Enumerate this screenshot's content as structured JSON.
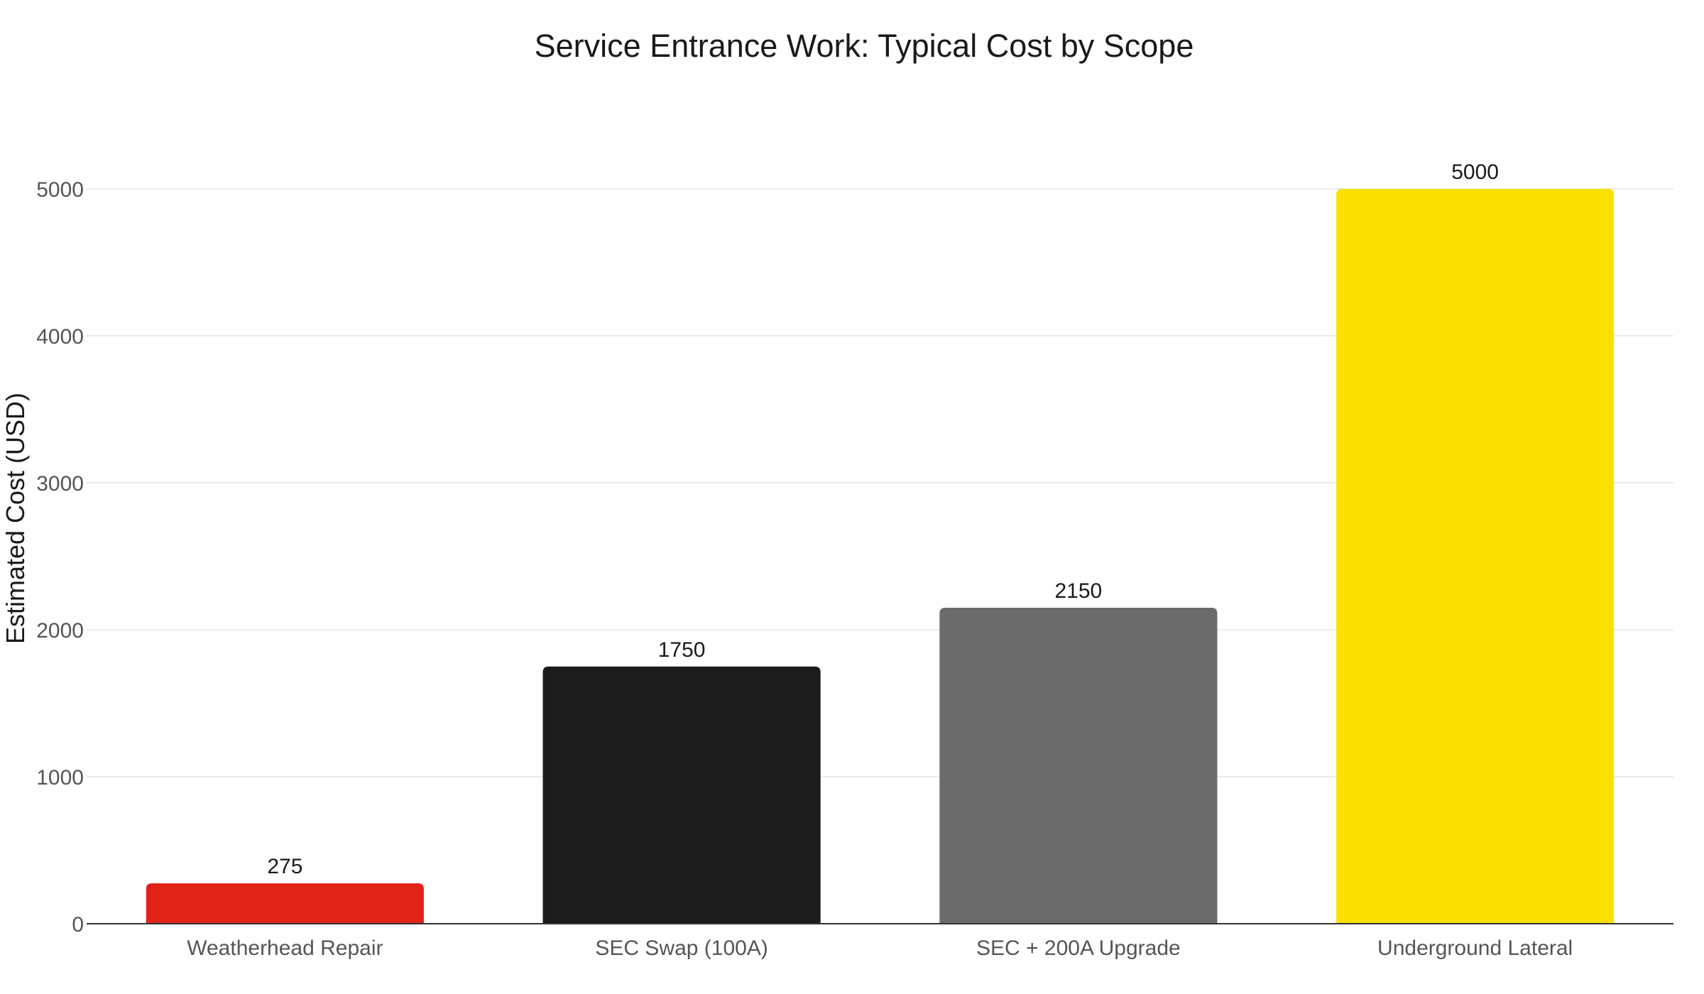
{
  "chart_data": {
    "type": "bar",
    "title": "Service Entrance Work: Typical Cost by Scope",
    "xlabel": "",
    "ylabel": "Estimated Cost (USD)",
    "categories": [
      "Weatherhead Repair",
      "SEC Swap (100A)",
      "SEC + 200A Upgrade",
      "Underground Lateral"
    ],
    "values": [
      275,
      1750,
      2150,
      5000
    ],
    "data_labels": [
      "275",
      "1750",
      "2150",
      "5000"
    ],
    "colors": [
      "#e2231a",
      "#1c1c1c",
      "#6b6b6b",
      "#fbe000"
    ],
    "ylim": [
      0,
      5000
    ],
    "yticks": [
      0,
      1000,
      2000,
      3000,
      4000,
      5000
    ],
    "ytick_labels": [
      "0",
      "1000",
      "2000",
      "3000",
      "4000",
      "5000"
    ],
    "grid": true,
    "legend": "none"
  }
}
